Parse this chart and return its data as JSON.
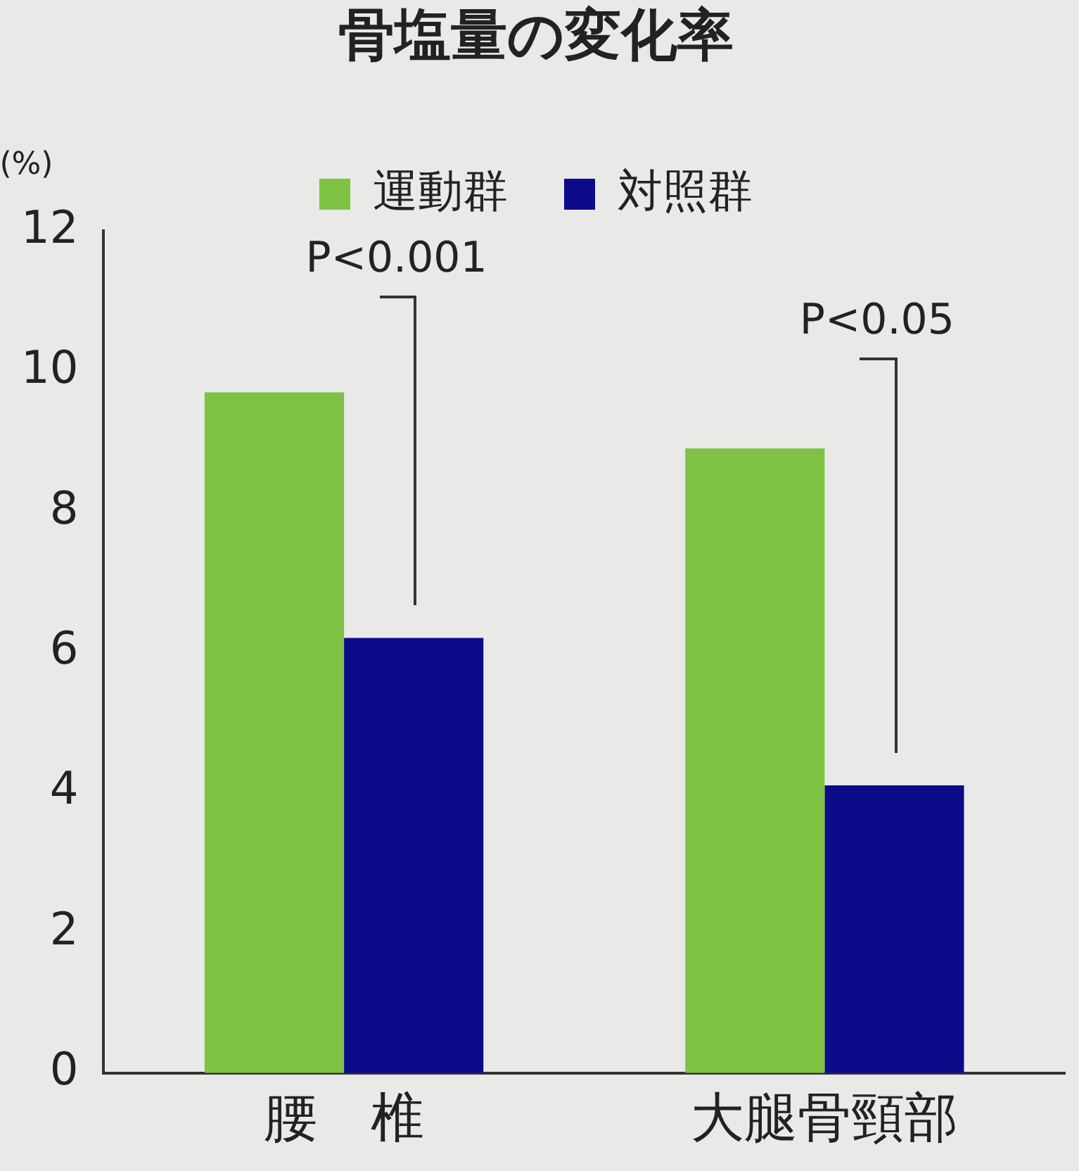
{
  "chart_data": {
    "type": "bar",
    "title": "骨塩量の変化率",
    "ylabel": "(%)",
    "categories": [
      "腰　椎",
      "大腿骨頸部"
    ],
    "series": [
      {
        "name": "運動群",
        "color": "#7dc242",
        "values": [
          9.7,
          8.9
        ]
      },
      {
        "name": "対照群",
        "color": "#0b0b8a",
        "values": [
          6.2,
          4.1
        ]
      }
    ],
    "ylim": [
      0,
      12
    ],
    "yticks": [
      0,
      2,
      4,
      6,
      8,
      10,
      12
    ],
    "grid": false,
    "legend": "top",
    "annotations": [
      "P<0.001",
      "P<0.05"
    ]
  }
}
